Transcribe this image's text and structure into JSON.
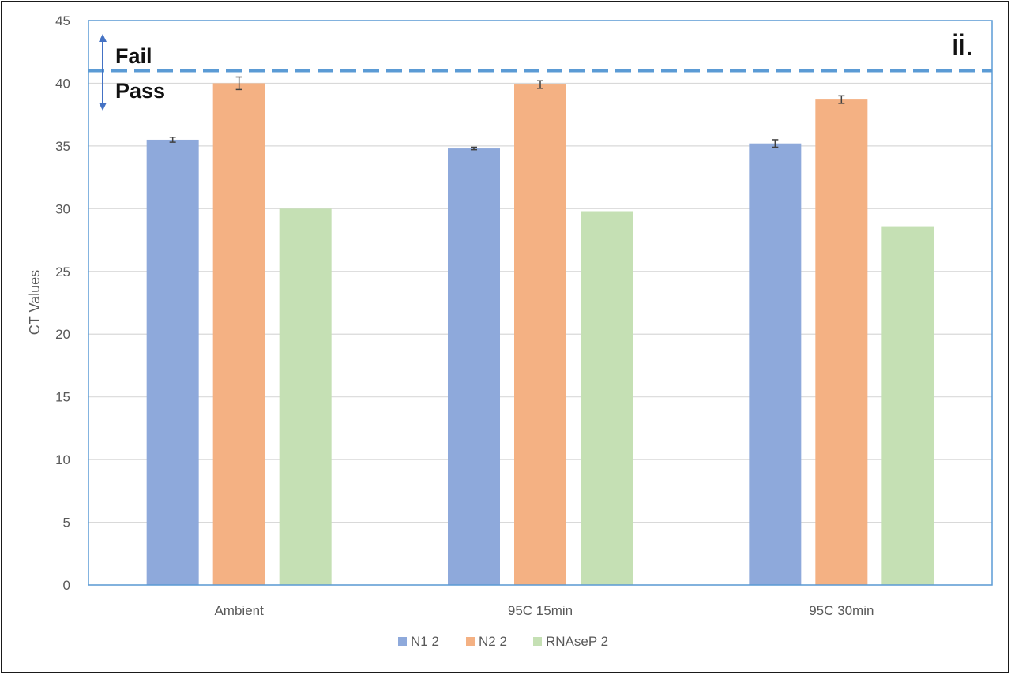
{
  "chart_data": {
    "type": "bar",
    "categories": [
      "Ambient",
      "95C 15min",
      "95C 30min"
    ],
    "series": [
      {
        "name": "N1 2",
        "values": [
          35.5,
          34.8,
          35.2
        ],
        "errors": [
          0.2,
          0.1,
          0.3
        ],
        "color": "#8EA9DB"
      },
      {
        "name": "N2 2",
        "values": [
          40.0,
          39.9,
          38.7
        ],
        "errors": [
          0.5,
          0.3,
          0.3
        ],
        "color": "#F4B183"
      },
      {
        "name": "RNAseP 2",
        "values": [
          30.0,
          29.8,
          28.6
        ],
        "errors": [
          null,
          null,
          null
        ],
        "color": "#C5E0B4"
      }
    ],
    "ylabel": "CT Values",
    "xlabel": "",
    "ylim": [
      0,
      45
    ],
    "yticks": [
      0,
      5,
      10,
      15,
      20,
      25,
      30,
      35,
      40,
      45
    ],
    "threshold": {
      "value": 41,
      "color": "#5B9BD5",
      "label_above": "Fail",
      "label_below": "Pass"
    },
    "panel_label": "ii.",
    "grid": true,
    "legend_position": "bottom",
    "plot_border_color": "#5B9BD5",
    "arrow_color": "#4472C4"
  }
}
